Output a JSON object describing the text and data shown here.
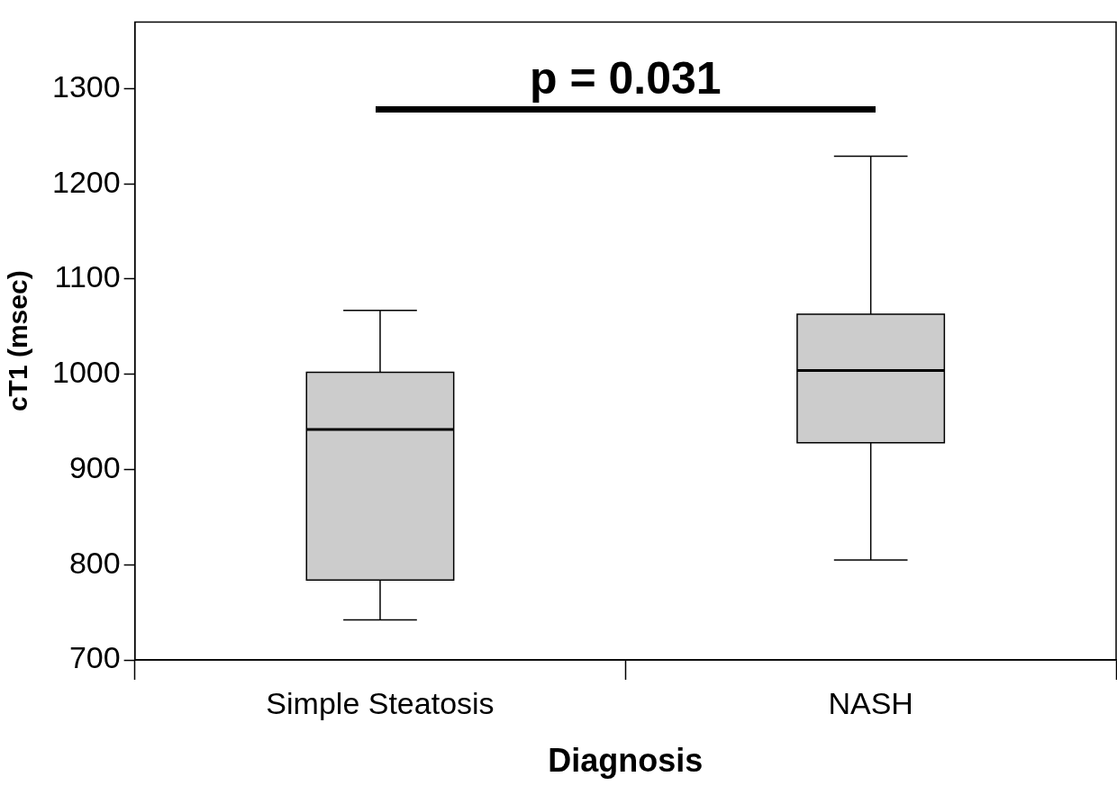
{
  "chart_data": {
    "type": "box",
    "xlabel": "Diagnosis",
    "ylabel": "cT1 (msec)",
    "categories": [
      "Simple Steatosis",
      "NASH"
    ],
    "boxes": [
      {
        "low": 742,
        "q1": 784,
        "median": 942,
        "q3": 1002,
        "high": 1067
      },
      {
        "low": 805,
        "q1": 928,
        "median": 1004,
        "q3": 1063,
        "high": 1229
      }
    ],
    "color": "#cccccc",
    "ylim": [
      700,
      1370
    ],
    "yticks": [
      700,
      800,
      900,
      1000,
      1100,
      1200,
      1300
    ],
    "grid": false,
    "legend": false,
    "annotations": [
      "p = 0.031"
    ]
  }
}
